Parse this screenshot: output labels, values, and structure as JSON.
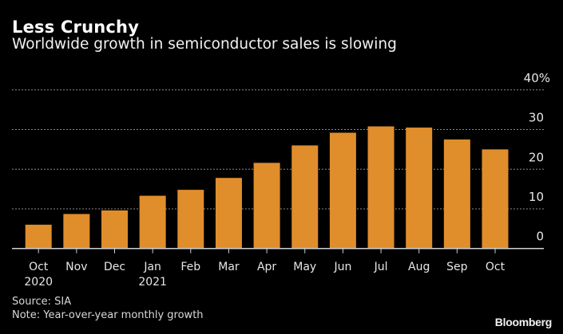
{
  "header": {
    "title": "Less Crunchy",
    "subtitle": "Worldwide growth in semiconductor sales is slowing"
  },
  "footer": {
    "source": "Source: SIA",
    "note": "Note: Year-over-year monthly growth",
    "logo": "Bloomberg"
  },
  "colors": {
    "bar": "#E08D2B",
    "background": "#000000",
    "gridline": "#8a8a8a",
    "axis": "#cfcfcf",
    "text": "#e6e6e6"
  },
  "chart_data": {
    "type": "bar",
    "title": "Less Crunchy",
    "subtitle": "Worldwide growth in semiconductor sales is slowing",
    "xlabel": "",
    "ylabel": "",
    "categories": [
      "Oct",
      "Nov",
      "Dec",
      "Jan",
      "Feb",
      "Mar",
      "Apr",
      "May",
      "Jun",
      "Jul",
      "Aug",
      "Sep",
      "Oct"
    ],
    "category_sublabels": [
      "2020",
      "",
      "",
      "2021",
      "",
      "",
      "",
      "",
      "",
      "",
      "",
      "",
      ""
    ],
    "values": [
      6.0,
      8.7,
      9.6,
      13.3,
      14.8,
      17.8,
      21.6,
      26.0,
      29.2,
      30.8,
      30.5,
      27.5,
      25.0
    ],
    "ylim": [
      0,
      40
    ],
    "yticks": [
      0,
      10,
      20,
      30,
      40
    ],
    "ytick_labels": [
      "0",
      "10",
      "20",
      "30",
      "40%"
    ],
    "y_axis_side": "right",
    "grid": true,
    "grid_style": "dotted",
    "legend": "none",
    "source": "Source: SIA",
    "note": "Note: Year-over-year monthly growth"
  }
}
